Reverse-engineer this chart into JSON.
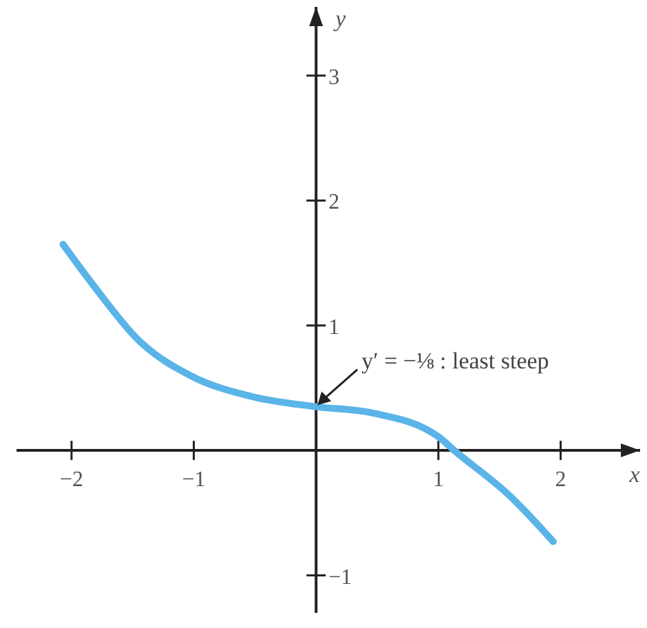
{
  "chart_data": {
    "type": "line",
    "xlabel": "x",
    "ylabel": "y",
    "x": [
      -2.07,
      -1.82,
      -1.45,
      -1.03,
      -0.52,
      0,
      0.46,
      1,
      1.13,
      1.58,
      1.94
    ],
    "series": [
      {
        "color": "#5ab4e8",
        "values": [
          1.65,
          1.32,
          0.88,
          0.6,
          0.43,
          0.35,
          0.3,
          0.11,
          0,
          -0.36,
          -0.73
        ]
      }
    ],
    "xlim": [
      -2.45,
      2.65
    ],
    "ylim": [
      -1.3,
      3.55
    ],
    "xticks": [
      -2,
      -1,
      1,
      2
    ],
    "yticks": [
      -1,
      1,
      2,
      3
    ],
    "annotations": [
      {
        "text": "y′ = −⅛ : least steep",
        "x": 0,
        "y": 0.35
      }
    ],
    "marker": "none",
    "line_style": "solid"
  }
}
